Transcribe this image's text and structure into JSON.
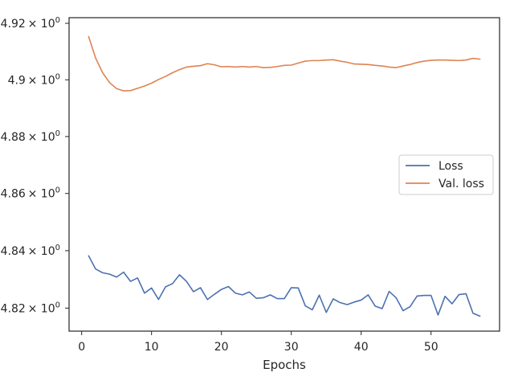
{
  "chart_data": {
    "type": "line",
    "title": "",
    "xlabel": "Epochs",
    "ylabel": "",
    "xlim": [
      -1.8,
      59.8
    ],
    "ylim": [
      4.812,
      4.922
    ],
    "yscale": "log",
    "grid": false,
    "legend_position": "center-right",
    "x_ticks": [
      {
        "value": 0,
        "label": "0"
      },
      {
        "value": 10,
        "label": "10"
      },
      {
        "value": 20,
        "label": "20"
      },
      {
        "value": 30,
        "label": "30"
      },
      {
        "value": 40,
        "label": "40"
      },
      {
        "value": 50,
        "label": "50"
      }
    ],
    "y_ticks": [
      {
        "value": 4.82,
        "base": "4.82",
        "mult": "× 10",
        "exp": "0"
      },
      {
        "value": 4.84,
        "base": "4.84",
        "mult": "× 10",
        "exp": "0"
      },
      {
        "value": 4.86,
        "base": "4.86",
        "mult": "× 10",
        "exp": "0"
      },
      {
        "value": 4.88,
        "base": "4.88",
        "mult": "× 10",
        "exp": "0"
      },
      {
        "value": 4.9,
        "base": "4.9",
        "mult": "× 10",
        "exp": "0"
      },
      {
        "value": 4.92,
        "base": "4.92",
        "mult": "× 10",
        "exp": "0"
      }
    ],
    "x": [
      1,
      2,
      3,
      4,
      5,
      6,
      7,
      8,
      9,
      10,
      11,
      12,
      13,
      14,
      15,
      16,
      17,
      18,
      19,
      20,
      21,
      22,
      23,
      24,
      25,
      26,
      27,
      28,
      29,
      30,
      31,
      32,
      33,
      34,
      35,
      36,
      37,
      38,
      39,
      40,
      41,
      42,
      43,
      44,
      45,
      46,
      47,
      48,
      49,
      50,
      51,
      52,
      53,
      54,
      55,
      56,
      57
    ],
    "series": [
      {
        "name": "Loss",
        "color": "#4c72b0",
        "values": [
          4.8382,
          4.8336,
          4.8323,
          4.8318,
          4.8308,
          4.8325,
          4.8293,
          4.8305,
          4.8252,
          4.827,
          4.823,
          4.8274,
          4.8285,
          4.8316,
          4.8293,
          4.8257,
          4.8271,
          4.823,
          4.8248,
          4.8265,
          4.8275,
          4.8252,
          4.8246,
          4.8256,
          4.8234,
          4.8236,
          4.8246,
          4.8233,
          4.8233,
          4.8271,
          4.827,
          4.8208,
          4.8194,
          4.8245,
          4.8185,
          4.8232,
          4.8219,
          4.8212,
          4.8221,
          4.8228,
          4.8246,
          4.8207,
          4.8198,
          4.8258,
          4.8236,
          4.8191,
          4.8205,
          4.8242,
          4.8244,
          4.8244,
          4.8176,
          4.8241,
          4.8215,
          4.8247,
          4.825,
          4.8182,
          4.8172
        ]
      },
      {
        "name": "Val. loss",
        "color": "#dd8452",
        "values": [
          4.9153,
          4.9077,
          4.9025,
          4.899,
          4.8969,
          4.8961,
          4.8962,
          4.897,
          4.8978,
          4.8988,
          4.9001,
          4.9012,
          4.9025,
          4.9036,
          4.9045,
          4.9048,
          4.905,
          4.9057,
          4.9053,
          4.9046,
          4.9047,
          4.9045,
          4.9047,
          4.9045,
          4.9047,
          4.9043,
          4.9044,
          4.9047,
          4.9051,
          4.9052,
          4.9059,
          4.9066,
          4.9068,
          4.9068,
          4.907,
          4.9071,
          4.9066,
          4.9062,
          4.9056,
          4.9055,
          4.9054,
          4.9051,
          4.9049,
          4.9045,
          4.9043,
          4.9049,
          4.9054,
          4.9061,
          4.9066,
          4.9069,
          4.907,
          4.907,
          4.9069,
          4.9068,
          4.907,
          4.9076,
          4.9073
        ]
      }
    ]
  }
}
